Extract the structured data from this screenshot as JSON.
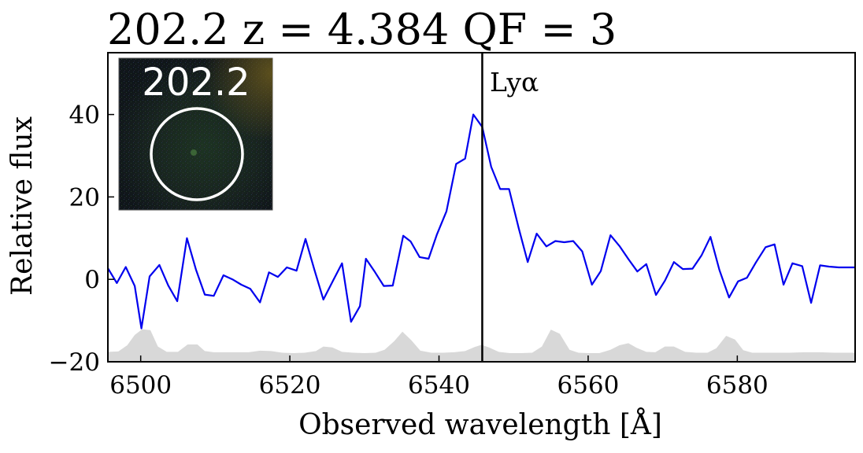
{
  "chart_data": {
    "type": "line",
    "title": "202.2 z = 4.384 QF = 3",
    "xlabel": "Observed wavelength  [Å]",
    "ylabel": "Relative flux",
    "xlim": [
      6495.6,
      6595.8
    ],
    "ylim": [
      -20,
      55
    ],
    "xticks": [
      6500,
      6520,
      6540,
      6560,
      6580
    ],
    "yticks": [
      -20,
      0,
      20,
      40
    ],
    "series": [
      {
        "name": "flux",
        "color": "#0000ee",
        "style": "line",
        "x": [
          6495.6,
          6496.8,
          6498.0,
          6499.2,
          6500.1,
          6501.2,
          6502.5,
          6503.7,
          6504.9,
          6506.2,
          6507.4,
          6508.6,
          6509.8,
          6511.1,
          6512.3,
          6513.5,
          6514.7,
          6516.0,
          6517.2,
          6518.4,
          6519.6,
          6520.9,
          6522.1,
          6523.3,
          6524.5,
          6525.8,
          6527.0,
          6528.2,
          6529.4,
          6530.2,
          6531.4,
          6532.6,
          6533.8,
          6535.2,
          6536.2,
          6537.4,
          6538.6,
          6539.7,
          6541.0,
          6542.3,
          6543.5,
          6544.6,
          6545.8,
          6547.0,
          6548.2,
          6549.4,
          6550.7,
          6551.9,
          6553.1,
          6554.4,
          6555.6,
          6556.8,
          6558.0,
          6559.2,
          6560.5,
          6561.7,
          6563.0,
          6564.2,
          6565.4,
          6566.6,
          6567.8,
          6569.1,
          6570.3,
          6571.5,
          6572.7,
          6574.0,
          6575.2,
          6576.4,
          6577.6,
          6578.9,
          6580.1,
          6581.3,
          6582.5,
          6583.8,
          6585.0,
          6586.2,
          6587.4,
          6588.7,
          6589.9,
          6591.1,
          6592.3,
          6593.6,
          6594.8,
          6595.8
        ],
        "y": [
          2.7,
          -0.9,
          3.0,
          -1.6,
          -11.9,
          0.7,
          3.5,
          -1.5,
          -5.3,
          10.0,
          2.4,
          -3.7,
          -4.0,
          1.0,
          0.0,
          -1.3,
          -2.3,
          -5.6,
          1.7,
          0.6,
          2.9,
          2.1,
          9.8,
          2.3,
          -4.9,
          -0.3,
          3.9,
          -10.3,
          -6.5,
          5.0,
          1.8,
          -1.6,
          -1.5,
          10.6,
          9.2,
          5.4,
          5.0,
          10.8,
          16.5,
          28.0,
          29.3,
          40.0,
          37.0,
          27.3,
          21.9,
          21.9,
          12.3,
          4.2,
          11.1,
          8.0,
          9.3,
          9.0,
          9.3,
          6.8,
          -1.3,
          2.0,
          10.7,
          8.1,
          4.9,
          1.9,
          3.7,
          -3.8,
          -0.3,
          4.2,
          2.5,
          2.6,
          5.8,
          10.3,
          2.3,
          -4.4,
          -0.5,
          0.4,
          4.1,
          7.8,
          8.5,
          -1.3,
          3.9,
          3.2,
          -5.7,
          3.4,
          3.1,
          2.9,
          2.9,
          2.9
        ]
      },
      {
        "name": "noise",
        "color": "#d8d8d8",
        "style": "filled-area",
        "baseline": -20,
        "x": [
          6495.6,
          6497.0,
          6498.2,
          6499.2,
          6500.2,
          6501.3,
          6502.3,
          6503.5,
          6505.0,
          6506.3,
          6507.6,
          6508.6,
          6509.8,
          6511.5,
          6513.0,
          6514.5,
          6516.0,
          6517.5,
          6519.0,
          6520.5,
          6522.0,
          6523.5,
          6524.5,
          6525.7,
          6527.0,
          6528.5,
          6530.0,
          6531.5,
          6532.7,
          6534.0,
          6535.1,
          6536.3,
          6537.5,
          6539.0,
          6540.5,
          6542.0,
          6543.5,
          6544.8,
          6545.7,
          6546.7,
          6548.0,
          6549.5,
          6551.0,
          6552.5,
          6553.8,
          6555.0,
          6556.2,
          6557.5,
          6558.7,
          6560.0,
          6561.5,
          6563.0,
          6564.2,
          6565.4,
          6566.5,
          6567.8,
          6569.0,
          6570.3,
          6571.5,
          6573.0,
          6574.5,
          6576.0,
          6577.2,
          6578.5,
          6579.7,
          6580.8,
          6582.0,
          6583.5,
          6585.0,
          6587.0,
          6589.0,
          6591.0,
          6593.0,
          6595.8
        ],
        "y": [
          -17.6,
          -17.5,
          -16.0,
          -13.5,
          -12.1,
          -12.3,
          -16.3,
          -17.6,
          -17.6,
          -15.8,
          -15.8,
          -17.4,
          -17.7,
          -17.7,
          -17.7,
          -17.7,
          -17.3,
          -17.4,
          -17.8,
          -17.9,
          -17.8,
          -17.4,
          -16.3,
          -16.5,
          -17.6,
          -17.8,
          -17.9,
          -17.8,
          -17.1,
          -15.0,
          -12.7,
          -14.8,
          -17.3,
          -17.8,
          -17.8,
          -17.7,
          -17.4,
          -16.4,
          -15.9,
          -16.5,
          -17.6,
          -17.9,
          -17.9,
          -17.8,
          -16.3,
          -12.2,
          -13.2,
          -17.1,
          -17.8,
          -17.9,
          -17.9,
          -17.1,
          -16.0,
          -15.5,
          -16.6,
          -17.6,
          -17.7,
          -16.3,
          -16.3,
          -17.6,
          -17.8,
          -17.8,
          -16.7,
          -13.7,
          -14.6,
          -17.2,
          -17.8,
          -17.8,
          -17.8,
          -17.8,
          -17.7,
          -17.7,
          -17.8,
          -17.8
        ]
      }
    ],
    "annotations": [
      {
        "type": "vline",
        "x": 6545.8,
        "color": "#000000",
        "label": "Lyα"
      }
    ],
    "inset": {
      "label": "202.2",
      "content": "cutout image of source with white aperture circle"
    },
    "grid": false,
    "legend": "none"
  }
}
